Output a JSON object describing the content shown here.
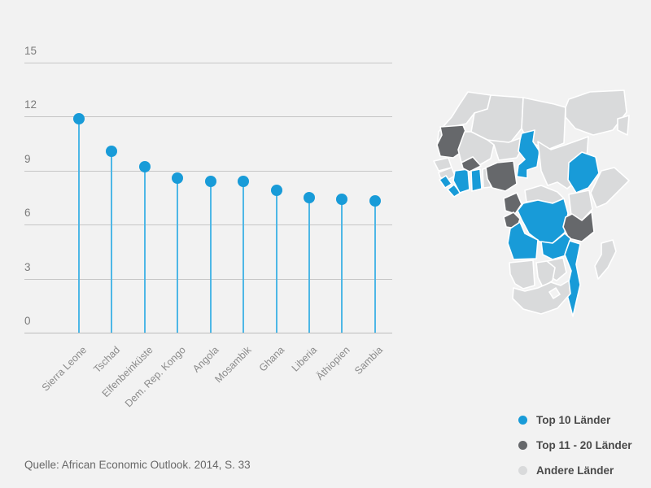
{
  "chart_data": {
    "type": "scatter",
    "style": "lollipop",
    "title": "",
    "xlabel": "",
    "ylabel": "",
    "categories": [
      "Sierra Leone",
      "Tschad",
      "Elfenbeinküste",
      "Dem. Rep. Kongo",
      "Angola",
      "Mosambik",
      "Ghana",
      "Liberia",
      "Äthiopien",
      "Sambia"
    ],
    "values": [
      11.9,
      10.1,
      9.2,
      8.6,
      8.4,
      8.4,
      7.9,
      7.5,
      7.4,
      7.3
    ],
    "yticks": [
      0,
      3,
      6,
      9,
      12,
      15
    ],
    "ylim": [
      0,
      15
    ],
    "grid": true,
    "legend_position": "bottom-right"
  },
  "legend": {
    "items": [
      {
        "label": "Top 10 Länder",
        "category": "top10"
      },
      {
        "label": "Top 11 - 20 Länder",
        "category": "top11_20"
      },
      {
        "label": "Andere Länder",
        "category": "other"
      }
    ]
  },
  "source": {
    "text": "Quelle: African Economic Outlook. 2014, S. 33"
  },
  "colors": {
    "background": "#f2f2f2",
    "top10": "#189bd8",
    "top11_20": "#66686b",
    "other": "#d9dadb",
    "stem": "#4db7e6",
    "grid": "#c6c6c6",
    "baseline": "#bcbcbc",
    "tick_text": "#7b7b7b",
    "category_text": "#8b8b8b",
    "legend_text": "#4a4a4a",
    "source_text": "#686868",
    "map_border": "#ffffff"
  },
  "map": {
    "title": "africa-map",
    "regions": [
      {
        "id": "morocco",
        "category": "other"
      },
      {
        "id": "algeria",
        "category": "other"
      },
      {
        "id": "libya",
        "category": "other"
      },
      {
        "id": "egypt",
        "category": "other"
      },
      {
        "id": "arabia",
        "category": "other"
      },
      {
        "id": "mauritania",
        "category": "top11_20"
      },
      {
        "id": "mali",
        "category": "other"
      },
      {
        "id": "niger",
        "category": "other"
      },
      {
        "id": "chad",
        "category": "top10"
      },
      {
        "id": "sudan",
        "category": "other"
      },
      {
        "id": "senegal",
        "category": "other"
      },
      {
        "id": "guinea",
        "category": "other"
      },
      {
        "id": "sierra-leone",
        "category": "top10"
      },
      {
        "id": "liberia",
        "category": "top10"
      },
      {
        "id": "cote-divoire",
        "category": "top10"
      },
      {
        "id": "burkina-faso",
        "category": "top11_20"
      },
      {
        "id": "ghana",
        "category": "top10"
      },
      {
        "id": "togo-benin",
        "category": "other"
      },
      {
        "id": "nigeria",
        "category": "top11_20"
      },
      {
        "id": "cameroon",
        "category": "top11_20"
      },
      {
        "id": "car",
        "category": "other"
      },
      {
        "id": "congo-gabon",
        "category": "top11_20"
      },
      {
        "id": "drc",
        "category": "top10"
      },
      {
        "id": "ethiopia",
        "category": "top10"
      },
      {
        "id": "somalia",
        "category": "other"
      },
      {
        "id": "kenya",
        "category": "other"
      },
      {
        "id": "tanzania",
        "category": "top11_20"
      },
      {
        "id": "angola",
        "category": "top10"
      },
      {
        "id": "zambia",
        "category": "top10"
      },
      {
        "id": "mozambique",
        "category": "top10"
      },
      {
        "id": "zimbabwe",
        "category": "other"
      },
      {
        "id": "namibia",
        "category": "other"
      },
      {
        "id": "botswana",
        "category": "other"
      },
      {
        "id": "south-africa",
        "category": "other"
      },
      {
        "id": "madagascar",
        "category": "other"
      }
    ]
  }
}
